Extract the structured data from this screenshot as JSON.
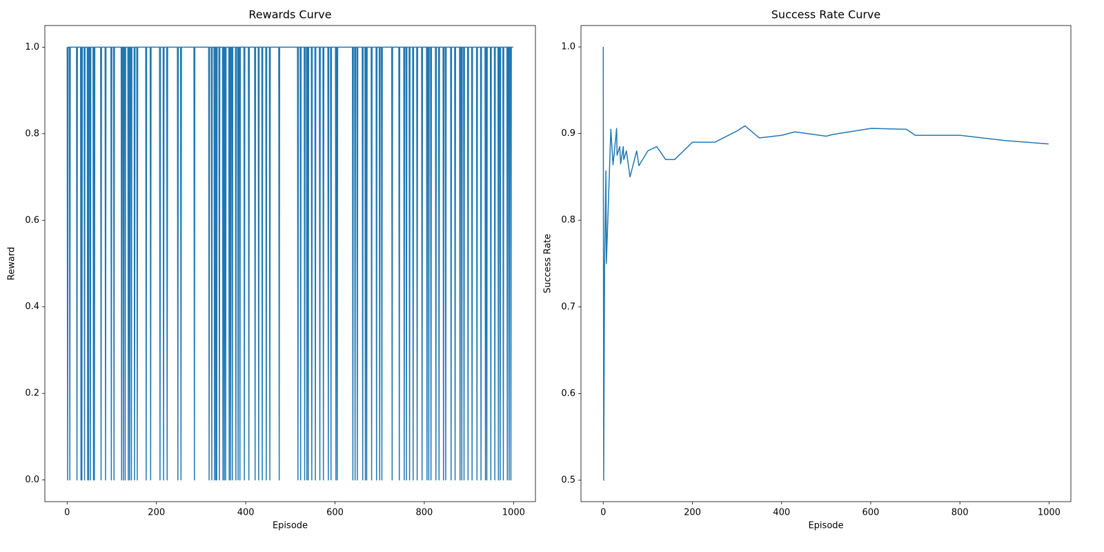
{
  "chart_data": [
    {
      "type": "line",
      "title": "Rewards Curve",
      "x_label": "Episode",
      "y_label": "Reward",
      "color": "#1f77b4",
      "xlim": [
        -49.95,
        1048.95
      ],
      "ylim": [
        -0.05,
        1.05
      ],
      "xticks": [
        0,
        200,
        400,
        600,
        800,
        1000
      ],
      "yticks": [
        {
          "value": 0,
          "label": "0.0"
        },
        0.2,
        0.4,
        0.6,
        0.8,
        {
          "value": 1,
          "label": "1.0"
        }
      ],
      "values": [
        1,
        0,
        1,
        1,
        1,
        1,
        0,
        1,
        1,
        1,
        1,
        1,
        1,
        1,
        1,
        1,
        1,
        1,
        1,
        1,
        1,
        1,
        0,
        1,
        1,
        1,
        1,
        1,
        1,
        1,
        1,
        0,
        1,
        0,
        1,
        1,
        1,
        1,
        1,
        0,
        1,
        1,
        1,
        1,
        1,
        1,
        0,
        1,
        0,
        1,
        1,
        1,
        0,
        1,
        1,
        1,
        1,
        1,
        1,
        0,
        1,
        0,
        1,
        1,
        1,
        1,
        1,
        1,
        1,
        1,
        1,
        1,
        1,
        1,
        1,
        1,
        0,
        1,
        1,
        1,
        1,
        1,
        1,
        1,
        1,
        1,
        0,
        1,
        1,
        1,
        1,
        1,
        1,
        1,
        1,
        1,
        1,
        1,
        1,
        0,
        1,
        1,
        1,
        1,
        1,
        0,
        1,
        1,
        1,
        1,
        1,
        1,
        1,
        1,
        1,
        1,
        1,
        1,
        1,
        1,
        1,
        1,
        0,
        1,
        1,
        1,
        0,
        1,
        1,
        1,
        0,
        1,
        1,
        1,
        1,
        1,
        1,
        0,
        1,
        1,
        0,
        1,
        1,
        1,
        0,
        1,
        1,
        1,
        1,
        1,
        1,
        0,
        1,
        1,
        1,
        1,
        1,
        0,
        1,
        1,
        1,
        1,
        1,
        1,
        1,
        1,
        1,
        1,
        1,
        1,
        1,
        1,
        1,
        1,
        1,
        1,
        1,
        0,
        1,
        1,
        1,
        1,
        1,
        1,
        1,
        1,
        1,
        0,
        1,
        1,
        1,
        1,
        1,
        1,
        1,
        1,
        1,
        1,
        1,
        1,
        1,
        1,
        1,
        1,
        1,
        1,
        1,
        1,
        0,
        1,
        1,
        1,
        1,
        1,
        1,
        1,
        0,
        1,
        1,
        1,
        1,
        1,
        1,
        1,
        0,
        1,
        1,
        1,
        1,
        1,
        1,
        1,
        1,
        1,
        1,
        1,
        1,
        1,
        1,
        1,
        1,
        1,
        1,
        1,
        1,
        1,
        1,
        1,
        0,
        1,
        1,
        1,
        1,
        1,
        1,
        0,
        1,
        1,
        1,
        1,
        1,
        1,
        1,
        1,
        1,
        1,
        1,
        1,
        1,
        1,
        1,
        1,
        1,
        1,
        1,
        1,
        1,
        1,
        1,
        1,
        1,
        1,
        1,
        1,
        1,
        0,
        1,
        1,
        1,
        1,
        1,
        1,
        1,
        1,
        1,
        1,
        1,
        1,
        1,
        1,
        1,
        1,
        1,
        1,
        1,
        1,
        1,
        1,
        1,
        1,
        1,
        1,
        1,
        1,
        1,
        1,
        1,
        1,
        0,
        1,
        1,
        1,
        1,
        1,
        0,
        1,
        1,
        1,
        1,
        1,
        0,
        1,
        1,
        0,
        1,
        0,
        1,
        1,
        1,
        1,
        1,
        0,
        1,
        1,
        1,
        1,
        1,
        1,
        1,
        0,
        1,
        1,
        0,
        1,
        1,
        0,
        1,
        1,
        1,
        1,
        1,
        1,
        1,
        0,
        1,
        1,
        0,
        1,
        1,
        1,
        0,
        1,
        1,
        1,
        1,
        1,
        1,
        1,
        0,
        1,
        1,
        1,
        1,
        0,
        1,
        1,
        1,
        0,
        1,
        1,
        1,
        1,
        1,
        1,
        1,
        1,
        1,
        0,
        1,
        1,
        1,
        1,
        1,
        1,
        1,
        1,
        1,
        0,
        1,
        1,
        1,
        1,
        1,
        1,
        1,
        1,
        1,
        1,
        1,
        1,
        1,
        0,
        1,
        1,
        1,
        1,
        1,
        1,
        1,
        0,
        1,
        1,
        1,
        1,
        1,
        1,
        1,
        0,
        1,
        1,
        1,
        1,
        1,
        1,
        1,
        1,
        0,
        1,
        1,
        1,
        1,
        1,
        1,
        1,
        0,
        1,
        1,
        1,
        1,
        1,
        1,
        1,
        1,
        1,
        1,
        1,
        1,
        1,
        1,
        1,
        1,
        1,
        1,
        1,
        1,
        0,
        1,
        1,
        1,
        1,
        1,
        1,
        1,
        1,
        1,
        1,
        1,
        1,
        1,
        1,
        1,
        1,
        1,
        1,
        1,
        1,
        1,
        1,
        1,
        1,
        1,
        1,
        1,
        1,
        1,
        1,
        1,
        1,
        1,
        1,
        1,
        1,
        1,
        1,
        1,
        1,
        1,
        0,
        1,
        1,
        1,
        1,
        1,
        0,
        1,
        1,
        1,
        1,
        1,
        1,
        1,
        1,
        0,
        1,
        1,
        1,
        1,
        0,
        1,
        1,
        0,
        1,
        1,
        1,
        1,
        1,
        1,
        1,
        0,
        1,
        1,
        1,
        1,
        1,
        1,
        1,
        0,
        1,
        1,
        1,
        1,
        1,
        1,
        1,
        1,
        1,
        0,
        1,
        1,
        1,
        1,
        1,
        1,
        1,
        0,
        1,
        1,
        1,
        1,
        1,
        1,
        1,
        1,
        1,
        1,
        0,
        1,
        1,
        1,
        1,
        1,
        0,
        1,
        1,
        1,
        1,
        1,
        1,
        1,
        1,
        1,
        1,
        0,
        1,
        1,
        0,
        1,
        1,
        1,
        1,
        1,
        1,
        1,
        1,
        1,
        1,
        1,
        1,
        1,
        1,
        1,
        1,
        1,
        1,
        1,
        1,
        1,
        1,
        1,
        1,
        1,
        1,
        1,
        1,
        1,
        1,
        1,
        1,
        1,
        1,
        0,
        1,
        1,
        1,
        1,
        0,
        1,
        1,
        1,
        1,
        0,
        1,
        1,
        1,
        1,
        1,
        1,
        1,
        1,
        1,
        1,
        1,
        0,
        1,
        1,
        1,
        1,
        1,
        0,
        1,
        1,
        0,
        1,
        1,
        1,
        1,
        1,
        1,
        1,
        1,
        1,
        1,
        0,
        1,
        1,
        1,
        1,
        1,
        1,
        1,
        1,
        1,
        1,
        0,
        1,
        1,
        1,
        1,
        1,
        1,
        0,
        1,
        1,
        1,
        1,
        0,
        1,
        1,
        1,
        1,
        1,
        1,
        1,
        1,
        1,
        1,
        1,
        1,
        1,
        1,
        1,
        1,
        1,
        1,
        1,
        1,
        1,
        1,
        0,
        1,
        1,
        1,
        1,
        1,
        1,
        1,
        1,
        1,
        1,
        1,
        1,
        1,
        1,
        1,
        0,
        1,
        1,
        1,
        1,
        1,
        1,
        1,
        1,
        1,
        1,
        0,
        1,
        1,
        1,
        1,
        0,
        1,
        1,
        1,
        1,
        1,
        1,
        0,
        1,
        1,
        1,
        1,
        1,
        1,
        1,
        0,
        1,
        1,
        1,
        1,
        1,
        1,
        1,
        1,
        0,
        1,
        1,
        1,
        1,
        1,
        1,
        1,
        1,
        1,
        1,
        0,
        1,
        1,
        1,
        1,
        1,
        1,
        1,
        1,
        1,
        1,
        0,
        1,
        1,
        1,
        0,
        1,
        1,
        1,
        1,
        0,
        1,
        1,
        1,
        1,
        1,
        1,
        1,
        1,
        1,
        1,
        0,
        1,
        1,
        1,
        1,
        1,
        1,
        0,
        1,
        1,
        1,
        1,
        1,
        1,
        1,
        1,
        1,
        0,
        1,
        1,
        1,
        1,
        0,
        1,
        1,
        1,
        1,
        1,
        1,
        1,
        1,
        1,
        1,
        1,
        0,
        1,
        1,
        1,
        1,
        1,
        1,
        1,
        1,
        0,
        1,
        1,
        1,
        1,
        1,
        1,
        1,
        1,
        1,
        1,
        0,
        1,
        1,
        1,
        0,
        1,
        1,
        1,
        1,
        0,
        1,
        1,
        1,
        1,
        1,
        1,
        1,
        1,
        0,
        1,
        1,
        1,
        1,
        1,
        1,
        1,
        1,
        0,
        1,
        1,
        1,
        1,
        1,
        1,
        1,
        1,
        1,
        1,
        0,
        1,
        1,
        1,
        1,
        1,
        1,
        1,
        1,
        0,
        1,
        1,
        1,
        1,
        1,
        1,
        1,
        1,
        1,
        0,
        1,
        1,
        0,
        1,
        1,
        1,
        1,
        1,
        1,
        1,
        1,
        0,
        1,
        1,
        1,
        1,
        1,
        1,
        1,
        1,
        0,
        1,
        1,
        1,
        1,
        1,
        1,
        1,
        0,
        1,
        1,
        1,
        0,
        1,
        1,
        1,
        1,
        1,
        1,
        0,
        1,
        1,
        1,
        1,
        1,
        1,
        1,
        1,
        0,
        1,
        1,
        1,
        0,
        1,
        1,
        1,
        0,
        1,
        1,
        1,
        1,
        1
      ]
    },
    {
      "type": "line",
      "title": "Success Rate Curve",
      "x_label": "Episode",
      "y_label": "Success Rate",
      "color": "#1f77b4",
      "xlim": [
        -49.95,
        1048.95
      ],
      "ylim": [
        0.4753,
        1.0247
      ],
      "xticks": [
        0,
        200,
        400,
        600,
        800,
        1000
      ],
      "yticks": [
        0.5,
        0.6,
        0.7,
        0.8,
        0.9,
        {
          "value": 1,
          "label": "1.0"
        }
      ],
      "x": [
        0,
        1,
        3,
        6,
        7,
        17,
        22,
        30,
        31,
        37,
        39,
        45,
        46,
        52,
        60,
        75,
        80,
        100,
        120,
        140,
        160,
        200,
        250,
        300,
        318,
        350,
        400,
        430,
        500,
        515,
        600,
        680,
        700,
        800,
        900,
        999
      ],
      "values": [
        1.0,
        0.5,
        0.75,
        0.857,
        0.75,
        0.905,
        0.864,
        0.906,
        0.875,
        0.885,
        0.865,
        0.885,
        0.87,
        0.88,
        0.85,
        0.88,
        0.863,
        0.88,
        0.885,
        0.87,
        0.87,
        0.89,
        0.89,
        0.903,
        0.909,
        0.895,
        0.898,
        0.902,
        0.897,
        0.899,
        0.906,
        0.905,
        0.898,
        0.898,
        0.892,
        0.888
      ]
    }
  ]
}
